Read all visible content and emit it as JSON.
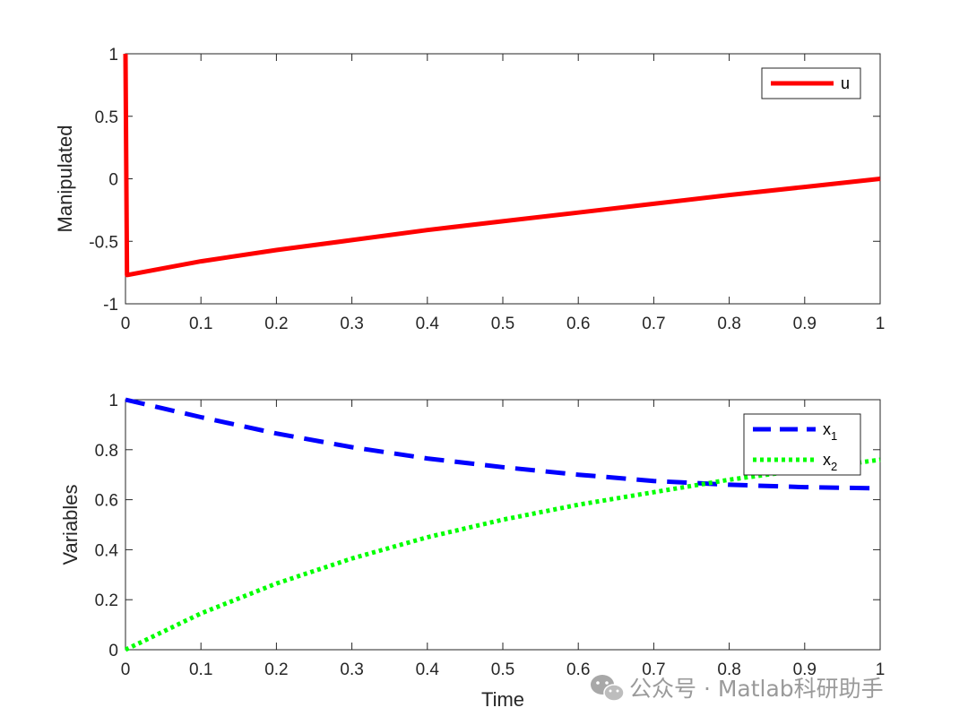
{
  "chart_data": [
    {
      "type": "line",
      "title": "",
      "xlabel": "",
      "ylabel": "Manipulated",
      "xlim": [
        0,
        1
      ],
      "ylim": [
        -1,
        1
      ],
      "xticks": [
        "0",
        "0.1",
        "0.2",
        "0.3",
        "0.4",
        "0.5",
        "0.6",
        "0.7",
        "0.8",
        "0.9",
        "1"
      ],
      "yticks": [
        "-1",
        "-0.5",
        "0",
        "0.5",
        "1"
      ],
      "grid": false,
      "legend": "top-right",
      "series": [
        {
          "name": "u",
          "color": "#ff0000",
          "style": "solid",
          "x": [
            0,
            0.002,
            0.1,
            0.2,
            0.3,
            0.4,
            0.5,
            0.6,
            0.7,
            0.8,
            0.9,
            1.0
          ],
          "y": [
            1,
            -0.77,
            -0.66,
            -0.57,
            -0.49,
            -0.41,
            -0.34,
            -0.27,
            -0.2,
            -0.13,
            -0.065,
            0
          ]
        }
      ]
    },
    {
      "type": "line",
      "title": "",
      "xlabel": "Time",
      "ylabel": "Variables",
      "xlim": [
        0,
        1
      ],
      "ylim": [
        0,
        1
      ],
      "xticks": [
        "0",
        "0.1",
        "0.2",
        "0.3",
        "0.4",
        "0.5",
        "0.6",
        "0.7",
        "0.8",
        "0.9",
        "1"
      ],
      "yticks": [
        "0",
        "0.2",
        "0.4",
        "0.6",
        "0.8",
        "1"
      ],
      "grid": false,
      "legend": "top-right",
      "series": [
        {
          "name": "x",
          "subscript": "1",
          "color": "#0000ff",
          "style": "dashed",
          "x": [
            0,
            0.1,
            0.2,
            0.3,
            0.4,
            0.5,
            0.6,
            0.7,
            0.8,
            0.9,
            1.0
          ],
          "y": [
            1.0,
            0.93,
            0.865,
            0.81,
            0.765,
            0.73,
            0.7,
            0.675,
            0.66,
            0.65,
            0.645
          ]
        },
        {
          "name": "x",
          "subscript": "2",
          "color": "#00ff00",
          "style": "dotted",
          "x": [
            0,
            0.1,
            0.2,
            0.3,
            0.4,
            0.5,
            0.6,
            0.7,
            0.8,
            0.9,
            1.0
          ],
          "y": [
            0,
            0.145,
            0.265,
            0.365,
            0.45,
            0.52,
            0.58,
            0.63,
            0.68,
            0.72,
            0.76
          ]
        }
      ]
    }
  ],
  "watermark": {
    "text": "公众号 · Matlab科研助手",
    "icon": "wechat-icon"
  }
}
